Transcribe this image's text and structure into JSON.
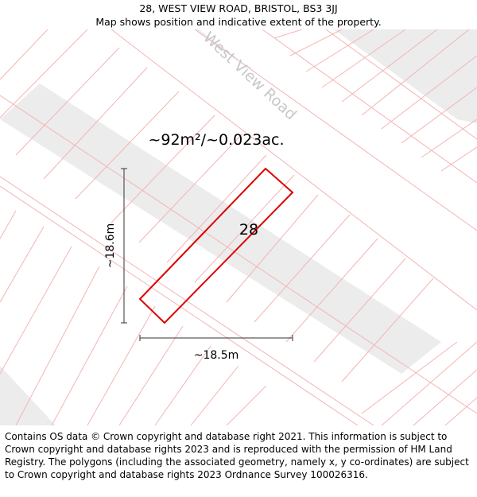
{
  "header": {
    "title": "28, WEST VIEW ROAD, BRISTOL, BS3 3JJ",
    "subtitle": "Map shows position and indicative extent of the property."
  },
  "map": {
    "road_name": "West View Road",
    "area_label": "~92m²/~0.023ac.",
    "plot_number": "28",
    "vertical_dimension": "~18.6m",
    "horizontal_dimension": "~18.5m",
    "colors": {
      "plot_outline": "#dd0000",
      "parcel_lines": "#f4b4b4",
      "building_fill": "#ececec",
      "road_label": "#c8c8c8"
    }
  },
  "footer": {
    "attribution": "Contains OS data © Crown copyright and database right 2021. This information is subject to Crown copyright and database rights 2023 and is reproduced with the permission of HM Land Registry. The polygons (including the associated geometry, namely x, y co-ordinates) are subject to Crown copyright and database rights 2023 Ordnance Survey 100026316."
  }
}
